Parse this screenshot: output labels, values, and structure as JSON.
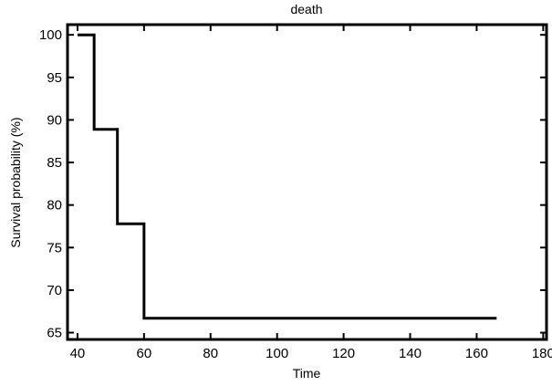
{
  "chart_data": {
    "type": "line",
    "style": "step",
    "title": "death",
    "xlabel": "Time",
    "ylabel": "Survival probability (%)",
    "xlim": [
      37,
      181
    ],
    "ylim": [
      64.2,
      101.2
    ],
    "xticks": [
      40,
      60,
      80,
      100,
      120,
      140,
      160,
      180
    ],
    "yticks": [
      65,
      70,
      75,
      80,
      85,
      90,
      95,
      100
    ],
    "grid": false,
    "series": [
      {
        "x": [
          40,
          45,
          52,
          60,
          166
        ],
        "y": [
          100,
          88.9,
          77.8,
          66.7,
          66.7
        ],
        "color": "#000000"
      }
    ]
  }
}
